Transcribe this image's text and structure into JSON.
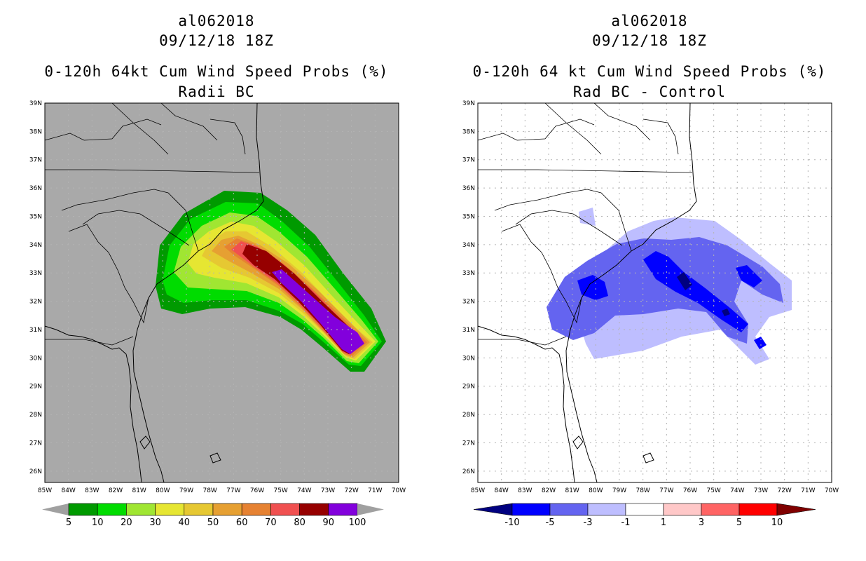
{
  "colors": {
    "land_bg_left": "#a9a9a9",
    "land_bg_right": "#ffffff",
    "grid": "#b4b4b4",
    "border": "#000000"
  },
  "left_panel": {
    "storm_id": "al062018",
    "datetime": "09/12/18 18Z",
    "title": "0-120h 64kt Cum Wind Speed Probs (%)",
    "subtitle": "Radii BC",
    "legend": {
      "colors": [
        "#a0a0a0",
        "#009a00",
        "#00dc00",
        "#a0e632",
        "#e6e632",
        "#e6c832",
        "#e6a032",
        "#e68232",
        "#f05050",
        "#960000",
        "#8200dc",
        "#a0a0a0"
      ],
      "labels": [
        "5",
        "10",
        "20",
        "30",
        "40",
        "50",
        "60",
        "70",
        "80",
        "90",
        "100"
      ]
    }
  },
  "right_panel": {
    "storm_id": "al062018",
    "datetime": "09/12/18 18Z",
    "title": "0-120h 64 kt Cum Wind Speed Probs (%)",
    "subtitle": "Rad BC - Control",
    "legend": {
      "colors": [
        "#000080",
        "#0000ff",
        "#6464f0",
        "#bebeff",
        "#ffffff",
        "#ffc8c8",
        "#ff6464",
        "#ff0000",
        "#800000"
      ],
      "labels": [
        "-10",
        "-5",
        "-3",
        "-1",
        "1",
        "3",
        "5",
        "10"
      ]
    }
  },
  "map_axes": {
    "lat_labels": [
      "39N",
      "38N",
      "37N",
      "36N",
      "35N",
      "34N",
      "33N",
      "32N",
      "31N",
      "30N",
      "29N",
      "28N",
      "27N",
      "26N"
    ],
    "lon_labels": [
      "85W",
      "84W",
      "83W",
      "82W",
      "81W",
      "80W",
      "79W",
      "78W",
      "77W",
      "76W",
      "75W",
      "74W",
      "73W",
      "72W",
      "71W",
      "70W"
    ],
    "lat_range": [
      25.6,
      39.0
    ],
    "lon_range": [
      -85,
      -70
    ]
  }
}
